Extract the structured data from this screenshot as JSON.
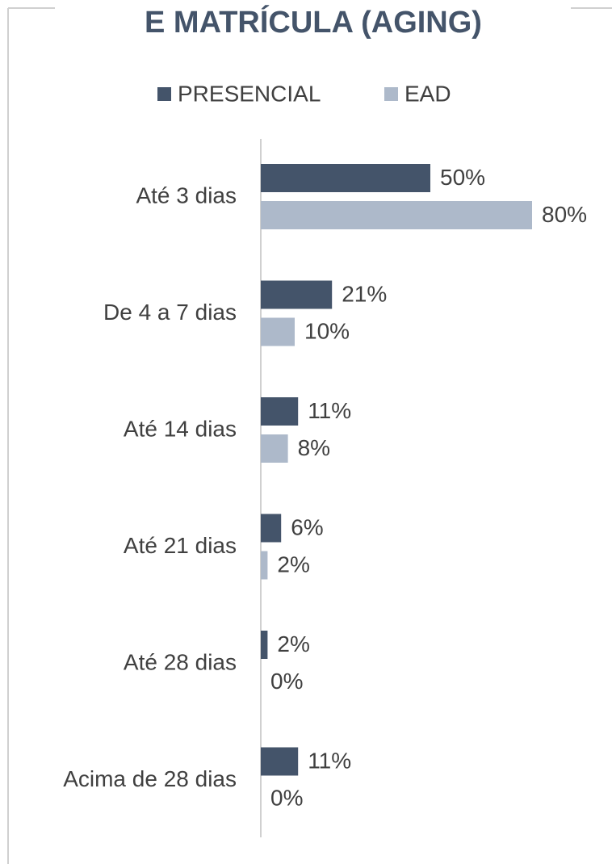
{
  "chart_data": {
    "type": "hbar",
    "title": "E MATRÍCULA (AGING)",
    "categories": [
      "Até 3 dias",
      "De 4 a 7 dias",
      "Até 14 dias",
      "Até 21 dias",
      "Até 28 dias",
      "Acima de 28 dias"
    ],
    "series": [
      {
        "name": "PRESENCIAL",
        "color": "#44546a",
        "values": [
          50,
          21,
          11,
          6,
          2,
          11
        ],
        "value_labels": [
          "50%",
          "21%",
          "11%",
          "6%",
          "2%",
          "11%"
        ]
      },
      {
        "name": "EAD",
        "color": "#adb9ca",
        "values": [
          80,
          10,
          8,
          2,
          0,
          0
        ],
        "value_labels": [
          "80%",
          "10%",
          "8%",
          "2%",
          "0%",
          "0%"
        ]
      }
    ],
    "xlim": [
      0,
      100
    ],
    "legend": "top"
  }
}
